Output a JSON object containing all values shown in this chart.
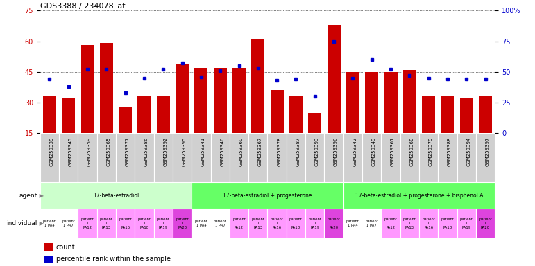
{
  "title": "GDS3388 / 234078_at",
  "gsm_ids": [
    "GSM259339",
    "GSM259345",
    "GSM259359",
    "GSM259365",
    "GSM259377",
    "GSM259386",
    "GSM259392",
    "GSM259395",
    "GSM259341",
    "GSM259346",
    "GSM259360",
    "GSM259367",
    "GSM259378",
    "GSM259387",
    "GSM259393",
    "GSM259396",
    "GSM259342",
    "GSM259349",
    "GSM259361",
    "GSM259368",
    "GSM259379",
    "GSM259388",
    "GSM259394",
    "GSM259397"
  ],
  "counts": [
    33,
    32,
    58,
    59,
    28,
    33,
    33,
    49,
    47,
    47,
    47,
    61,
    36,
    33,
    25,
    68,
    45,
    45,
    45,
    46,
    33,
    33,
    32,
    33
  ],
  "percentile_ranks": [
    44,
    38,
    52,
    52,
    33,
    45,
    52,
    57,
    46,
    51,
    55,
    53,
    43,
    44,
    30,
    75,
    45,
    60,
    52,
    47,
    45,
    44,
    44,
    44
  ],
  "ylim_left": [
    15,
    75
  ],
  "ylim_right": [
    0,
    100
  ],
  "yticks_left": [
    15,
    30,
    45,
    60,
    75
  ],
  "yticks_right": [
    0,
    25,
    50,
    75,
    100
  ],
  "bar_color": "#cc0000",
  "dot_color": "#0000cc",
  "agent_groups": [
    {
      "label": "17-beta-estradiol",
      "start": 0,
      "end": 7,
      "color": "#ccffcc"
    },
    {
      "label": "17-beta-estradiol + progesterone",
      "start": 8,
      "end": 15,
      "color": "#66ff66"
    },
    {
      "label": "17-beta-estradiol + progesterone + bisphenol A",
      "start": 16,
      "end": 23,
      "color": "#66ff66"
    }
  ],
  "individual_colors_pattern": [
    "white",
    "white",
    "#ff99ff",
    "#ff99ff",
    "#ff99ff",
    "#ff99ff",
    "#ff99ff",
    "#dd44dd",
    "white",
    "white",
    "#ff99ff",
    "#ff99ff",
    "#ff99ff",
    "#ff99ff",
    "#ff99ff",
    "#dd44dd",
    "white",
    "white",
    "#ff99ff",
    "#ff99ff",
    "#ff99ff",
    "#ff99ff",
    "#ff99ff",
    "#dd44dd"
  ],
  "individual_labels": [
    "patient\n1 PA4",
    "patient\n1 PA7",
    "patient\n1\nPA12",
    "patient\n1\nPA13",
    "patient\n1\nPA16",
    "patient\n1\nPA18",
    "patient\n1\nPA19",
    "patient\n1\nPA20",
    "patient\n1 PA4",
    "patient\n1 PA7",
    "patient\n1\nPA12",
    "patient\n1\nPA13",
    "patient\n1\nPA16",
    "patient\n1\nPA18",
    "patient\n1\nPA19",
    "patient\n1\nPA20",
    "patient\n1 PA4",
    "patient\n1 PA7",
    "patient\n1\nPA12",
    "patient\n1\nPA13",
    "patient\n1\nPA16",
    "patient\n1\nPA18",
    "patient\n1\nPA19",
    "patient\n1\nPA20"
  ],
  "bg_color": "#ffffff",
  "grid_color": "#000000",
  "axis_label_color_left": "#cc0000",
  "axis_label_color_right": "#0000cc",
  "tick_label_bg": "#cccccc",
  "gsm_label_bg": "#d0d0d0"
}
